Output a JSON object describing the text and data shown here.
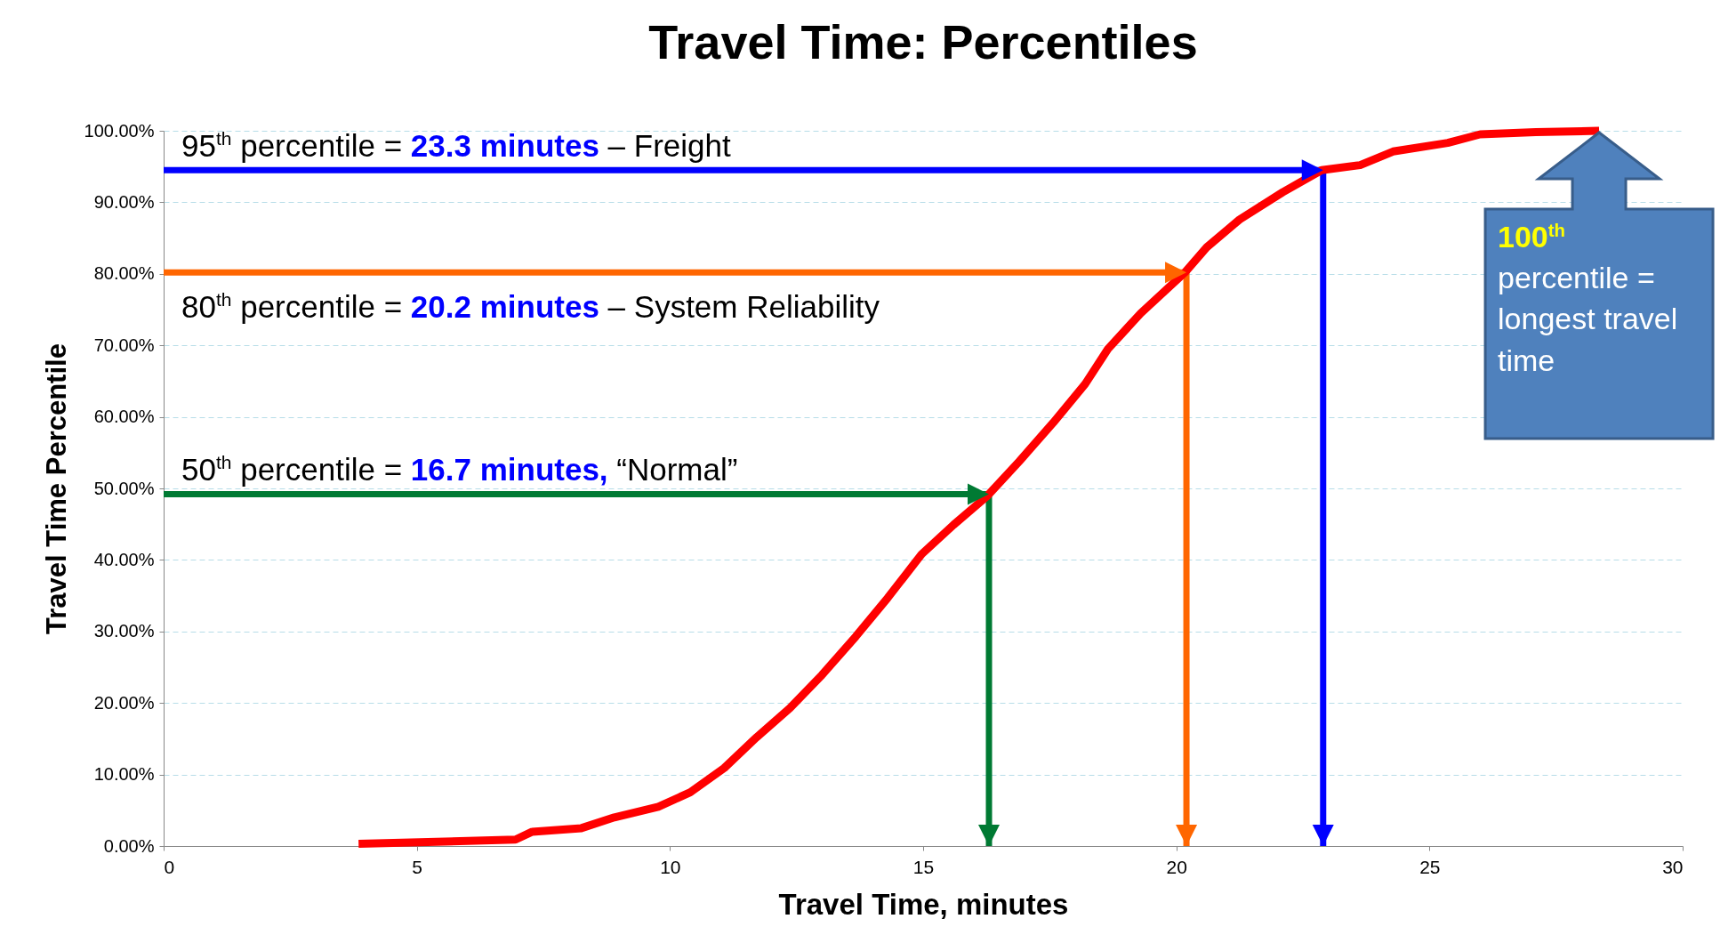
{
  "chart_data": {
    "type": "line",
    "title": "Travel Time:  Percentiles",
    "xlabel": "Travel Time, minutes",
    "ylabel": "Travel Time Percentile",
    "xlim": [
      0,
      30
    ],
    "xticks": [
      0,
      5,
      10,
      15,
      20,
      25,
      30
    ],
    "ylim": [
      0,
      100
    ],
    "yticks": [
      {
        "value": 0,
        "label": "0.00%"
      },
      {
        "value": 10,
        "label": "10.00%"
      },
      {
        "value": 20,
        "label": "20.00%"
      },
      {
        "value": 30,
        "label": "30.00%"
      },
      {
        "value": 40,
        "label": "40.00%"
      },
      {
        "value": 50,
        "label": "50.00%"
      },
      {
        "value": 60,
        "label": "60.00%"
      },
      {
        "value": 70,
        "label": "70.00%"
      },
      {
        "value": 80,
        "label": "80.00%"
      },
      {
        "value": 90,
        "label": "90.00%"
      },
      {
        "value": 100,
        "label": "100.00%"
      }
    ],
    "grid": "y",
    "line_style": "solid",
    "marker": "none",
    "series": [
      {
        "color": "#0000ff",
        "x": [
          0,
          22.9,
          22.9
        ],
        "values": [
          94.5,
          94.5,
          0
        ]
      },
      {
        "color": "#ff6600",
        "x": [
          0,
          20.2,
          20.2
        ],
        "values": [
          80.2,
          80.2,
          0
        ]
      },
      {
        "color": "#007a33",
        "x": [
          0,
          16.3,
          16.3
        ],
        "values": [
          49.2,
          49.2,
          0
        ]
      },
      {
        "color": "#ff0000",
        "x": [
          3.85,
          6.95,
          7.28,
          8.25,
          8.9,
          9.77,
          10.4,
          11.07,
          11.71,
          12.37,
          13.0,
          13.67,
          14.3,
          14.97,
          15.6,
          16.26,
          16.9,
          17.57,
          18.2,
          18.65,
          19.3,
          20.17,
          20.6,
          21.25,
          22.1,
          22.87,
          23.63,
          24.28,
          25.36,
          26.0,
          27.1,
          28.35
        ],
        "values": [
          0.3,
          0.9,
          2.0,
          2.5,
          4,
          5.5,
          7.5,
          10.9,
          15.2,
          19.3,
          23.9,
          29.3,
          34.7,
          40.8,
          44.9,
          48.9,
          53.8,
          59.2,
          64.6,
          69.5,
          74.5,
          80.2,
          83.7,
          87.6,
          91.4,
          94.5,
          95.2,
          97.1,
          98.3,
          99.5,
          99.8,
          100
        ]
      }
    ],
    "annotations": [
      "95$^{th}$ percentile = 23.3 minutes – Freight",
      "80$^{th}$ percentile = 20.2 minutes – System Reliability",
      "50$^{th}$ percentile = 16.7 minutes, “Normal”",
      {
        "text": "100$^{th}$ percentile = longest travel time",
        "x": 28.35,
        "y": 100
      }
    ]
  }
}
